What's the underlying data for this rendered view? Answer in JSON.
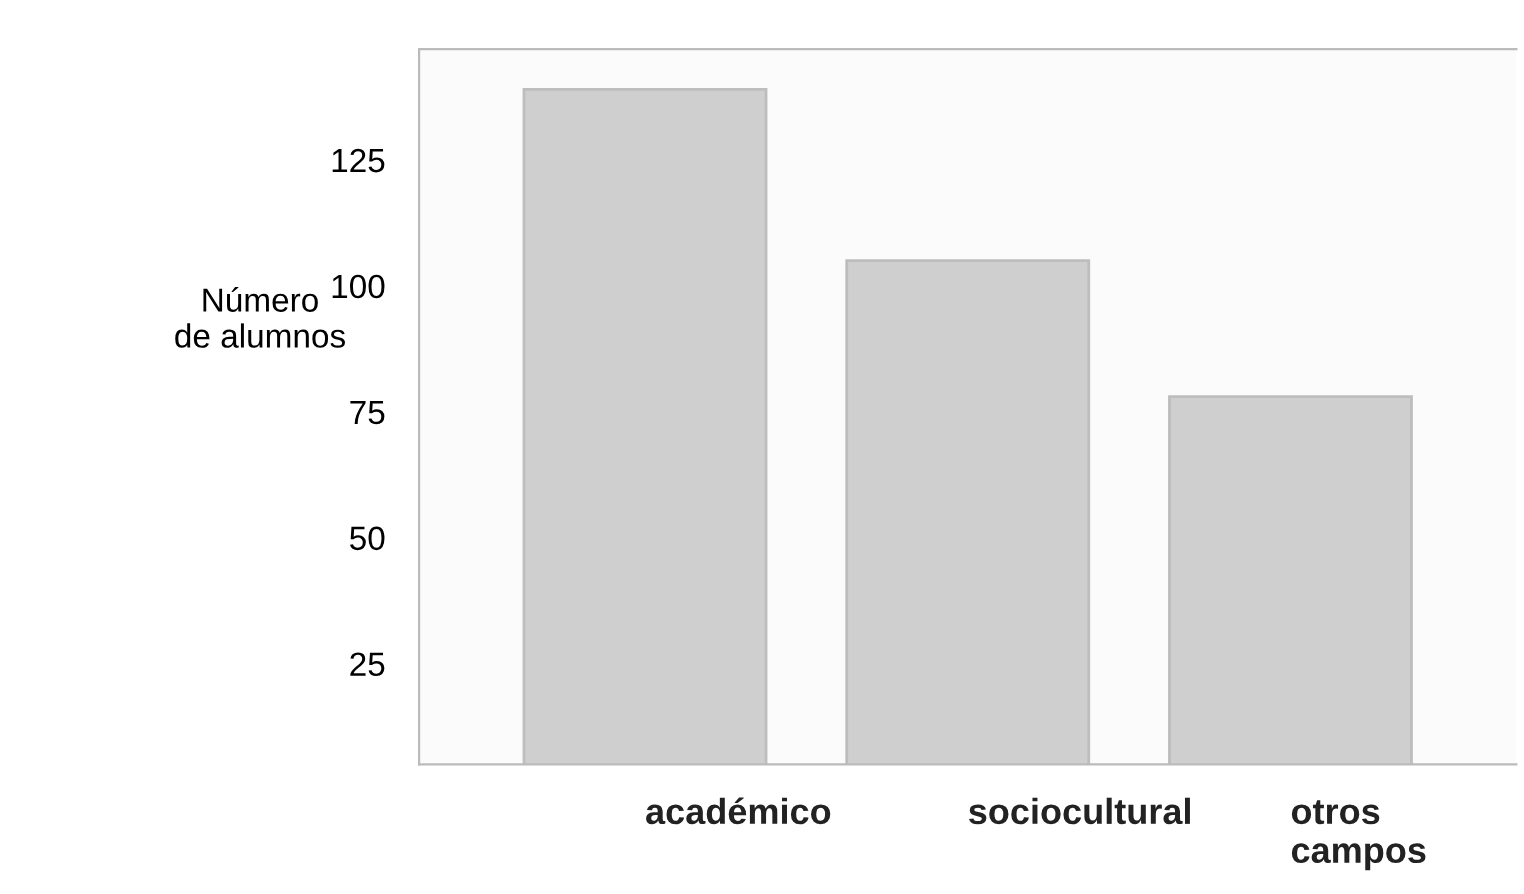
{
  "chart_data": {
    "type": "bar",
    "ylabel": "Número\nde alumnos",
    "categories": [
      "académico",
      "sociocultural",
      "otros\ncampos"
    ],
    "values": [
      139,
      105,
      78
    ],
    "color": "#cfcfcf",
    "ylim": [
      5,
      147
    ],
    "yticks": [
      25,
      50,
      75,
      100,
      125
    ],
    "grid": false
  }
}
